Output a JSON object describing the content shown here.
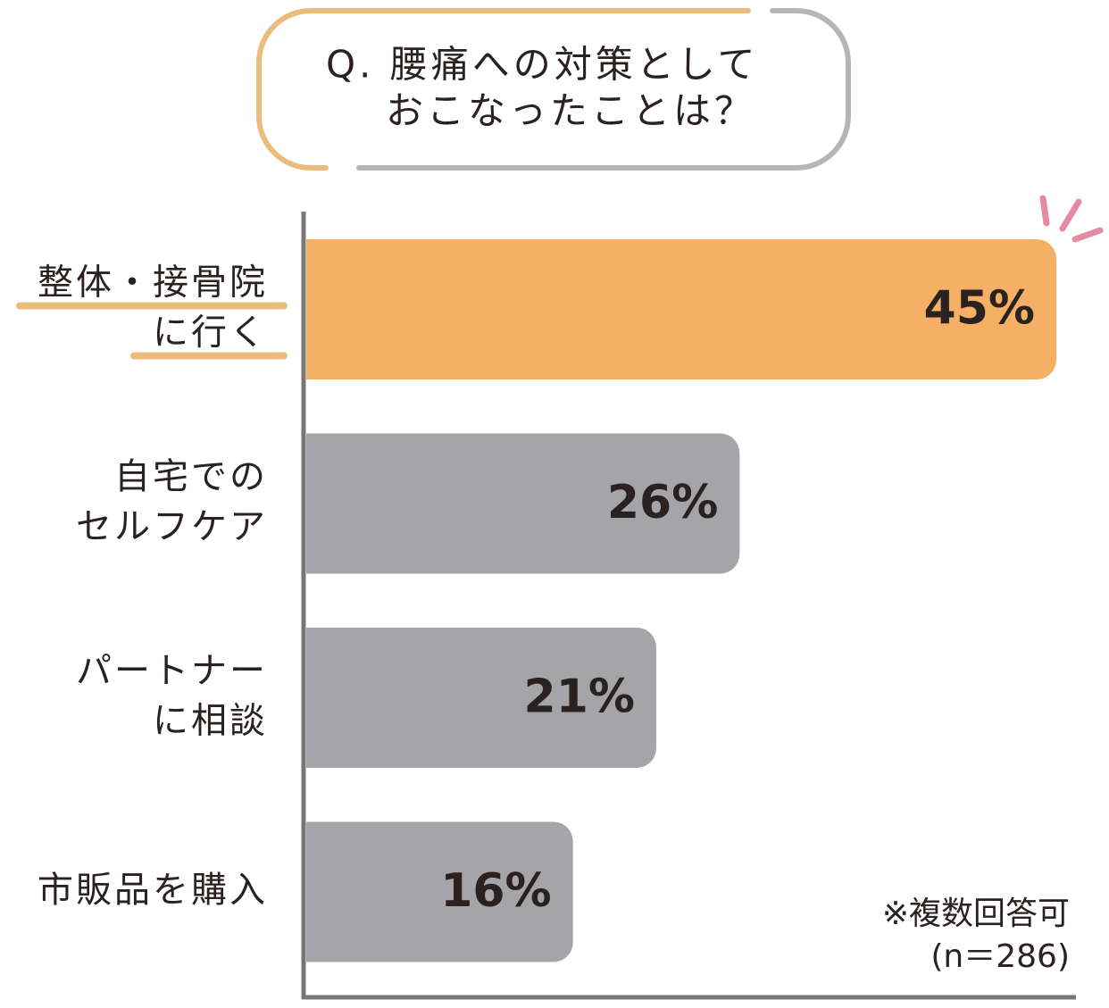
{
  "chart_data": {
    "type": "bar",
    "orientation": "horizontal",
    "title": [
      "Q. 腰痛への対策として",
      "おこなったことは？"
    ],
    "categories": [
      [
        "整体・接骨院",
        "に行く"
      ],
      [
        "自宅での",
        "セルフケア"
      ],
      [
        "パートナー",
        "に相談"
      ],
      [
        "市販品を購入"
      ]
    ],
    "values": [
      45,
      26,
      21,
      16
    ],
    "value_labels": [
      "45%",
      "26%",
      "21%",
      "16%"
    ],
    "colors": [
      "#f5b066",
      "#a5a4a8",
      "#a5a4a8",
      "#a5a4a8"
    ],
    "highlight": 0,
    "note": [
      "※複数回答可",
      "(n＝286)"
    ]
  }
}
